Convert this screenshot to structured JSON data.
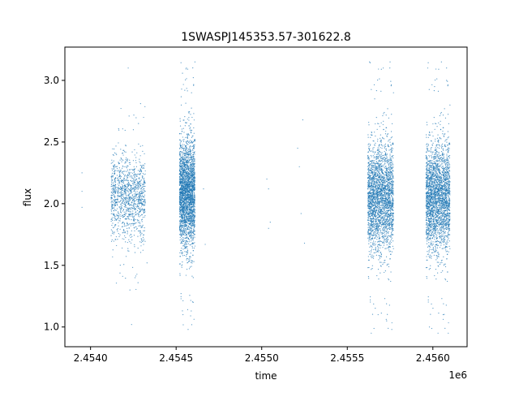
{
  "chart_data": {
    "type": "scatter",
    "title": "1SWASPJ145353.57-301622.8",
    "xlabel": "time",
    "ylabel": "flux",
    "x_offset_label": "1e6",
    "xlim": [
      2.45385,
      2.4562
    ],
    "ylim": [
      0.84,
      3.27
    ],
    "x_ticks": [
      2.454,
      2.4545,
      2.455,
      2.4555,
      2.456
    ],
    "x_tick_labels": [
      "2.4540",
      "2.4545",
      "2.4550",
      "2.4555",
      "2.4560"
    ],
    "y_ticks": [
      1.0,
      1.5,
      2.0,
      2.5,
      3.0
    ],
    "y_tick_labels": [
      "1.0",
      "1.5",
      "2.0",
      "2.5",
      "3.0"
    ],
    "grid": false,
    "point_color": "#1f77b4",
    "series": [
      {
        "x_units": "1e6 days",
        "points": [
          [
            2.45395,
            1.97
          ],
          [
            2.45395,
            2.1
          ],
          [
            2.45395,
            2.25
          ],
          [
            2.45412,
            2.05
          ],
          [
            2.45413,
            1.92
          ],
          [
            2.45414,
            2.18
          ],
          [
            2.45415,
            2.01
          ],
          [
            2.45416,
            1.88
          ],
          [
            2.45417,
            2.22
          ],
          [
            2.45418,
            2.1
          ],
          [
            2.45419,
            1.85
          ],
          [
            2.4542,
            2.3
          ],
          [
            2.45421,
            1.95
          ],
          [
            2.45422,
            2.15
          ],
          [
            2.45423,
            2.05
          ],
          [
            2.45424,
            1.78
          ],
          [
            2.45425,
            2.35
          ],
          [
            2.45426,
            2.0
          ],
          [
            2.45427,
            2.2
          ],
          [
            2.45428,
            1.9
          ],
          [
            2.45429,
            2.08
          ],
          [
            2.4543,
            1.95
          ],
          [
            2.45431,
            2.12
          ],
          [
            2.45422,
            3.1
          ],
          [
            2.45423,
            1.3
          ],
          [
            2.45424,
            1.02
          ],
          [
            2.45425,
            2.6
          ],
          [
            2.45426,
            1.4
          ],
          [
            2.45428,
            2.65
          ],
          [
            2.45431,
            2.7
          ],
          [
            2.45432,
            2.1
          ],
          [
            2.45433,
            1.52
          ],
          [
            2.45452,
            2.05
          ],
          [
            2.45453,
            1.9
          ],
          [
            2.45454,
            2.2
          ],
          [
            2.45455,
            2.0
          ],
          [
            2.45456,
            1.82
          ],
          [
            2.45457,
            2.3
          ],
          [
            2.45458,
            2.1
          ],
          [
            2.45459,
            1.95
          ],
          [
            2.4546,
            2.15
          ],
          [
            2.45461,
            1.75
          ],
          [
            2.45453,
            2.8
          ],
          [
            2.45454,
            1.1
          ],
          [
            2.45456,
            3.1
          ],
          [
            2.45457,
            0.98
          ],
          [
            2.45459,
            2.9
          ],
          [
            2.4546,
            1.2
          ],
          [
            2.45461,
            3.15
          ],
          [
            2.45466,
            2.12
          ],
          [
            2.45467,
            1.67
          ],
          [
            2.45503,
            2.2
          ],
          [
            2.45504,
            1.8
          ],
          [
            2.45504,
            2.12
          ],
          [
            2.45505,
            1.85
          ],
          [
            2.45521,
            2.45
          ],
          [
            2.45522,
            2.3
          ],
          [
            2.45523,
            1.92
          ],
          [
            2.45524,
            2.68
          ],
          [
            2.45525,
            1.68
          ],
          [
            2.45563,
            2.05
          ],
          [
            2.45564,
            1.9
          ],
          [
            2.45565,
            2.2
          ],
          [
            2.45566,
            2.0
          ],
          [
            2.45567,
            1.8
          ],
          [
            2.45568,
            2.3
          ],
          [
            2.45569,
            2.1
          ],
          [
            2.4557,
            1.95
          ],
          [
            2.45571,
            2.15
          ],
          [
            2.45572,
            1.85
          ],
          [
            2.45573,
            2.25
          ],
          [
            2.45574,
            2.0
          ],
          [
            2.45575,
            1.9
          ],
          [
            2.45576,
            2.1
          ],
          [
            2.45563,
            3.15
          ],
          [
            2.45564,
            0.95
          ],
          [
            2.45566,
            2.85
          ],
          [
            2.45568,
            1.1
          ],
          [
            2.45571,
            3.1
          ],
          [
            2.45573,
            1.05
          ],
          [
            2.45575,
            3.15
          ],
          [
            2.45576,
            0.98
          ],
          [
            2.45577,
            2.9
          ],
          [
            2.45597,
            2.05
          ],
          [
            2.45598,
            1.9
          ],
          [
            2.45599,
            2.2
          ],
          [
            2.456,
            2.0
          ],
          [
            2.45601,
            1.8
          ],
          [
            2.45602,
            2.3
          ],
          [
            2.45603,
            2.1
          ],
          [
            2.45604,
            1.95
          ],
          [
            2.45605,
            2.15
          ],
          [
            2.45606,
            1.85
          ],
          [
            2.45607,
            2.25
          ],
          [
            2.45608,
            2.0
          ],
          [
            2.45609,
            1.9
          ],
          [
            2.4561,
            2.1
          ],
          [
            2.45597,
            3.1
          ],
          [
            2.45598,
            1.0
          ],
          [
            2.45601,
            2.95
          ],
          [
            2.45603,
            0.95
          ],
          [
            2.45605,
            3.15
          ],
          [
            2.45606,
            1.1
          ],
          [
            2.45608,
            3.0
          ],
          [
            2.45609,
            0.95
          ],
          [
            2.4561,
            2.8
          ]
        ]
      }
    ],
    "clusters": [
      {
        "x_start": 2.45412,
        "x_end": 2.45432,
        "y_center": 2.05,
        "y_spread": 0.17,
        "density": 0.45,
        "outlier_low": 1.3,
        "outlier_high": 2.85
      },
      {
        "x_start": 2.45452,
        "x_end": 2.45461,
        "y_center": 2.08,
        "y_spread": 0.22,
        "density": 1.0,
        "outlier_low": 0.98,
        "outlier_high": 3.15
      },
      {
        "x_start": 2.45562,
        "x_end": 2.45577,
        "y_center": 2.05,
        "y_spread": 0.22,
        "density": 1.0,
        "outlier_low": 0.95,
        "outlier_high": 3.15
      },
      {
        "x_start": 2.45596,
        "x_end": 2.4561,
        "y_center": 2.05,
        "y_spread": 0.22,
        "density": 1.0,
        "outlier_low": 0.95,
        "outlier_high": 3.15
      }
    ]
  }
}
